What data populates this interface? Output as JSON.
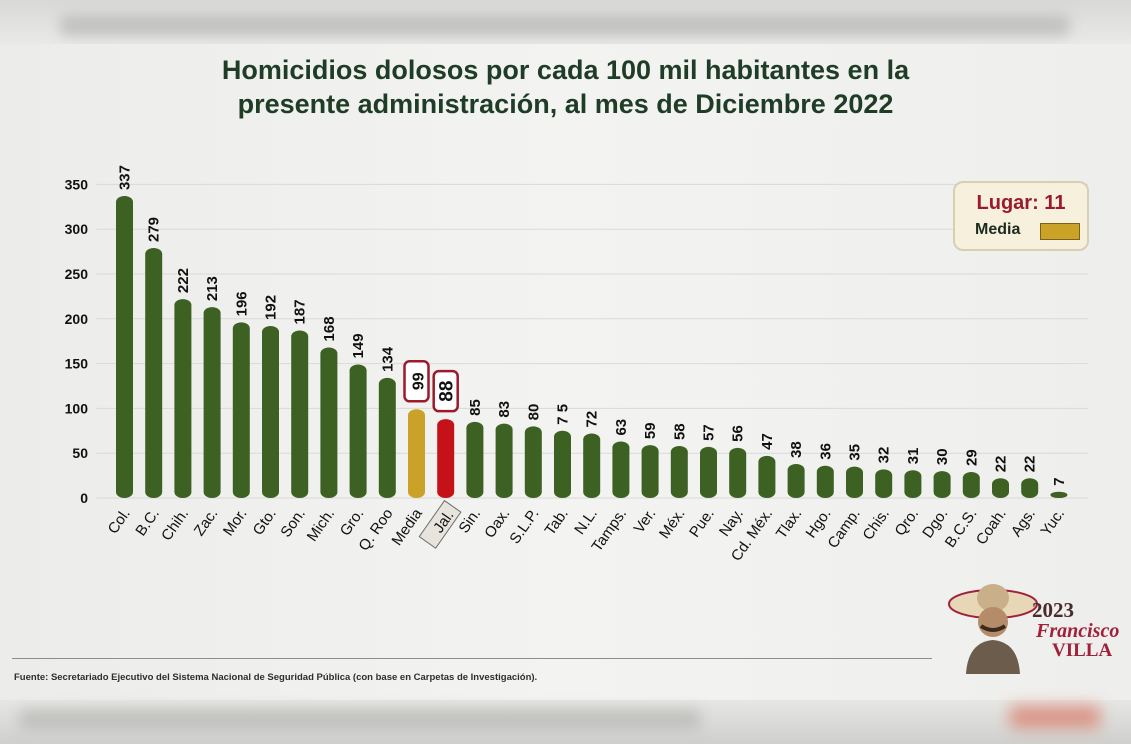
{
  "title_line1": "Homicidios dolosos por cada 100 mil habitantes en la",
  "title_line2": "presente administración, al mes de Diciembre 2022",
  "legend": {
    "lugar": "Lugar: 11",
    "media_label": "Media"
  },
  "footer": "Fuente: Secretariado Ejecutivo del Sistema Nacional de Seguridad Pública (con base en Carpetas de Investigación).",
  "logo": {
    "year": "2023",
    "name1": "Francisco",
    "name2": "VILLA"
  },
  "colors": {
    "green": "#3d6123",
    "gold": "#c9a227",
    "red": "#c41218",
    "title": "#1f3d26"
  },
  "chart_data": {
    "type": "bar",
    "title": "Homicidios dolosos por cada 100 mil habitantes en la presente administración, al mes de Diciembre 2022",
    "ylim": [
      0,
      350
    ],
    "yticks": [
      0,
      50,
      100,
      150,
      200,
      250,
      300,
      350
    ],
    "grid": true,
    "legend_position": "top-right",
    "categories": [
      "Col.",
      "B.C.",
      "Chih.",
      "Zac.",
      "Mor.",
      "Gto.",
      "Son.",
      "Mich.",
      "Gro.",
      "Q. Roo",
      "Media",
      "Jal.",
      "Sin.",
      "Oax.",
      "S.L.P.",
      "Tab.",
      "N.L.",
      "Tamps.",
      "Ver.",
      "Méx.",
      "Pue.",
      "Nay.",
      "Cd. Méx.",
      "Tlax.",
      "Hgo.",
      "Camp.",
      "Chis.",
      "Qro.",
      "Dgo.",
      "B.C.S.",
      "Coah.",
      "Ags.",
      "Yuc."
    ],
    "values": [
      337,
      279,
      222,
      213,
      196,
      192,
      187,
      168,
      149,
      134,
      99,
      88,
      85,
      83,
      80,
      75,
      72,
      63,
      59,
      58,
      57,
      56,
      47,
      38,
      36,
      35,
      32,
      31,
      30,
      29,
      22,
      22,
      7
    ],
    "value_labels": [
      "337",
      "279",
      "222",
      "213",
      "196",
      "192",
      "187",
      "168",
      "149",
      "134",
      "99",
      "88",
      "85",
      "83",
      "80",
      "7 5",
      "72",
      "63",
      "59",
      "58",
      "57",
      "56",
      "47",
      "38",
      "36",
      "35",
      "32",
      "31",
      "30",
      "29",
      "22",
      "22",
      "7"
    ],
    "highlight": {
      "Media": "gold",
      "Jal.": "red"
    }
  }
}
